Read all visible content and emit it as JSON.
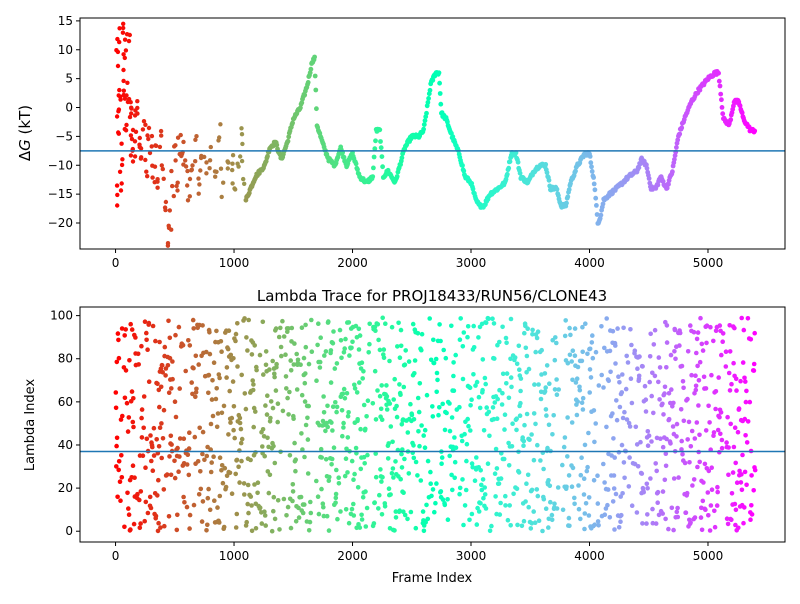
{
  "chart_data": [
    {
      "type": "scatter",
      "title": "",
      "xlabel": "",
      "ylabel": "ΔG (kT)",
      "ylabel_parts": {
        "delta": "Δ",
        "var": "G",
        "unit": " (kT)"
      },
      "xlim": [
        -300,
        5650
      ],
      "ylim": [
        -24.5,
        15.5
      ],
      "xticks": [
        0,
        1000,
        2000,
        3000,
        4000,
        5000
      ],
      "xtick_labels": [
        "0",
        "1000",
        "2000",
        "3000",
        "4000",
        "5000"
      ],
      "yticks": [
        -20,
        -15,
        -10,
        -5,
        0,
        5,
        10,
        15
      ],
      "ytick_labels": [
        "−20",
        "−15",
        "−10",
        "−5",
        "0",
        "5",
        "10",
        "15"
      ],
      "hline": -7.5,
      "hline_color": "#1f77b4",
      "colormap": "rainbow (red at frame 0 → violet at late frames)",
      "n_frames": 5400,
      "x_max": 5400,
      "trace_knots": [
        [
          1100,
          -16
        ],
        [
          1180,
          -12
        ],
        [
          1260,
          -10
        ],
        [
          1300,
          -7
        ],
        [
          1350,
          -6
        ],
        [
          1400,
          -9
        ],
        [
          1450,
          -6
        ],
        [
          1500,
          -2
        ],
        [
          1560,
          0
        ],
        [
          1620,
          4
        ],
        [
          1660,
          8
        ],
        [
          1680,
          8.5
        ],
        [
          1700,
          -3
        ],
        [
          1760,
          -7
        ],
        [
          1800,
          -9
        ],
        [
          1850,
          -10
        ],
        [
          1900,
          -7
        ],
        [
          1950,
          -10
        ],
        [
          2000,
          -8
        ],
        [
          2060,
          -12
        ],
        [
          2120,
          -13
        ],
        [
          2170,
          -12
        ],
        [
          2200,
          -4
        ],
        [
          2230,
          -4
        ],
        [
          2260,
          -12
        ],
        [
          2300,
          -11
        ],
        [
          2360,
          -13
        ],
        [
          2400,
          -10
        ],
        [
          2440,
          -7
        ],
        [
          2500,
          -5
        ],
        [
          2560,
          -5
        ],
        [
          2600,
          -4
        ],
        [
          2660,
          4
        ],
        [
          2700,
          6
        ],
        [
          2730,
          6
        ],
        [
          2750,
          -1
        ],
        [
          2790,
          -2
        ],
        [
          2840,
          -5
        ],
        [
          2900,
          -8
        ],
        [
          2950,
          -12
        ],
        [
          3000,
          -13
        ],
        [
          3040,
          -16
        ],
        [
          3070,
          -17
        ],
        [
          3110,
          -17
        ],
        [
          3160,
          -15
        ],
        [
          3230,
          -14
        ],
        [
          3290,
          -13
        ],
        [
          3340,
          -8
        ],
        [
          3380,
          -8
        ],
        [
          3420,
          -12
        ],
        [
          3480,
          -13
        ],
        [
          3530,
          -11
        ],
        [
          3580,
          -10
        ],
        [
          3630,
          -10
        ],
        [
          3670,
          -14
        ],
        [
          3720,
          -14
        ],
        [
          3760,
          -17
        ],
        [
          3800,
          -17
        ],
        [
          3840,
          -13
        ],
        [
          3900,
          -10
        ],
        [
          3960,
          -8
        ],
        [
          4000,
          -8
        ],
        [
          4040,
          -13
        ],
        [
          4070,
          -20
        ],
        [
          4090,
          -19
        ],
        [
          4120,
          -16
        ],
        [
          4170,
          -15
        ],
        [
          4230,
          -14
        ],
        [
          4280,
          -13
        ],
        [
          4330,
          -12
        ],
        [
          4400,
          -11
        ],
        [
          4440,
          -9
        ],
        [
          4480,
          -10
        ],
        [
          4520,
          -14
        ],
        [
          4560,
          -14
        ],
        [
          4600,
          -12
        ],
        [
          4650,
          -14
        ],
        [
          4700,
          -11
        ],
        [
          4750,
          -5
        ],
        [
          4800,
          -2
        ],
        [
          4860,
          1
        ],
        [
          4920,
          3
        ],
        [
          5000,
          5
        ],
        [
          5060,
          6
        ],
        [
          5090,
          6
        ],
        [
          5130,
          -2
        ],
        [
          5180,
          -3
        ],
        [
          5220,
          1
        ],
        [
          5260,
          1
        ],
        [
          5300,
          -2
        ],
        [
          5360,
          -4
        ],
        [
          5400,
          -4
        ]
      ],
      "early_points_approx": [
        [
          10,
          -16
        ],
        [
          15,
          8
        ],
        [
          20,
          -3
        ],
        [
          25,
          12
        ],
        [
          30,
          0
        ],
        [
          35,
          3
        ],
        [
          40,
          -13
        ],
        [
          50,
          -8
        ],
        [
          60,
          15
        ],
        [
          70,
          7
        ],
        [
          75,
          4
        ],
        [
          80,
          10
        ],
        [
          90,
          -4
        ],
        [
          100,
          2
        ],
        [
          110,
          12
        ],
        [
          120,
          0
        ],
        [
          130,
          -2
        ],
        [
          140,
          -7
        ],
        [
          150,
          -9
        ],
        [
          160,
          -3
        ],
        [
          170,
          -6
        ],
        [
          180,
          -1
        ],
        [
          200,
          -5
        ],
        [
          220,
          -8
        ],
        [
          240,
          -4
        ],
        [
          260,
          -11
        ],
        [
          280,
          -3
        ],
        [
          300,
          -6
        ],
        [
          320,
          -12
        ],
        [
          340,
          -9
        ],
        [
          360,
          -14
        ],
        [
          380,
          -5
        ],
        [
          400,
          -10
        ],
        [
          420,
          -17
        ],
        [
          440,
          -23
        ],
        [
          460,
          -20
        ],
        [
          480,
          -13
        ],
        [
          500,
          -9
        ],
        [
          520,
          -15
        ],
        [
          540,
          -6
        ],
        [
          560,
          -10
        ],
        [
          580,
          -8
        ],
        [
          600,
          -12
        ],
        [
          620,
          -14
        ],
        [
          650,
          -10
        ],
        [
          680,
          -7
        ],
        [
          700,
          -13
        ],
        [
          720,
          -9
        ],
        [
          760,
          -11
        ],
        [
          800,
          -9
        ],
        [
          840,
          -12
        ],
        [
          880,
          -4
        ],
        [
          900,
          -13
        ],
        [
          940,
          -11
        ],
        [
          980,
          -9
        ],
        [
          1000,
          -14
        ],
        [
          1040,
          -8
        ],
        [
          1060,
          -6
        ],
        [
          1080,
          -11
        ]
      ]
    },
    {
      "type": "scatter",
      "title": "Lambda Trace for PROJ18433/RUN56/CLONE43",
      "xlabel": "Frame Index",
      "ylabel": "Lambda Index",
      "xlim": [
        -300,
        5650
      ],
      "ylim": [
        -5,
        104
      ],
      "xticks": [
        0,
        1000,
        2000,
        3000,
        4000,
        5000
      ],
      "xtick_labels": [
        "0",
        "1000",
        "2000",
        "3000",
        "4000",
        "5000"
      ],
      "yticks": [
        0,
        20,
        40,
        60,
        80,
        100
      ],
      "ytick_labels": [
        "0",
        "20",
        "40",
        "60",
        "80",
        "100"
      ],
      "hline": 37,
      "hline_color": "#1f77b4",
      "colormap": "rainbow (red at frame 0 → violet at late frames)",
      "n_frames": 5400,
      "x_max": 5400,
      "value_range": [
        0,
        99
      ],
      "gaps": [
        [
          1660,
          1690
        ],
        [
          2150,
          2170
        ],
        [
          2880,
          2900
        ],
        [
          3740,
          3760
        ],
        [
          4080,
          4100
        ],
        [
          5130,
          5150
        ]
      ]
    }
  ]
}
